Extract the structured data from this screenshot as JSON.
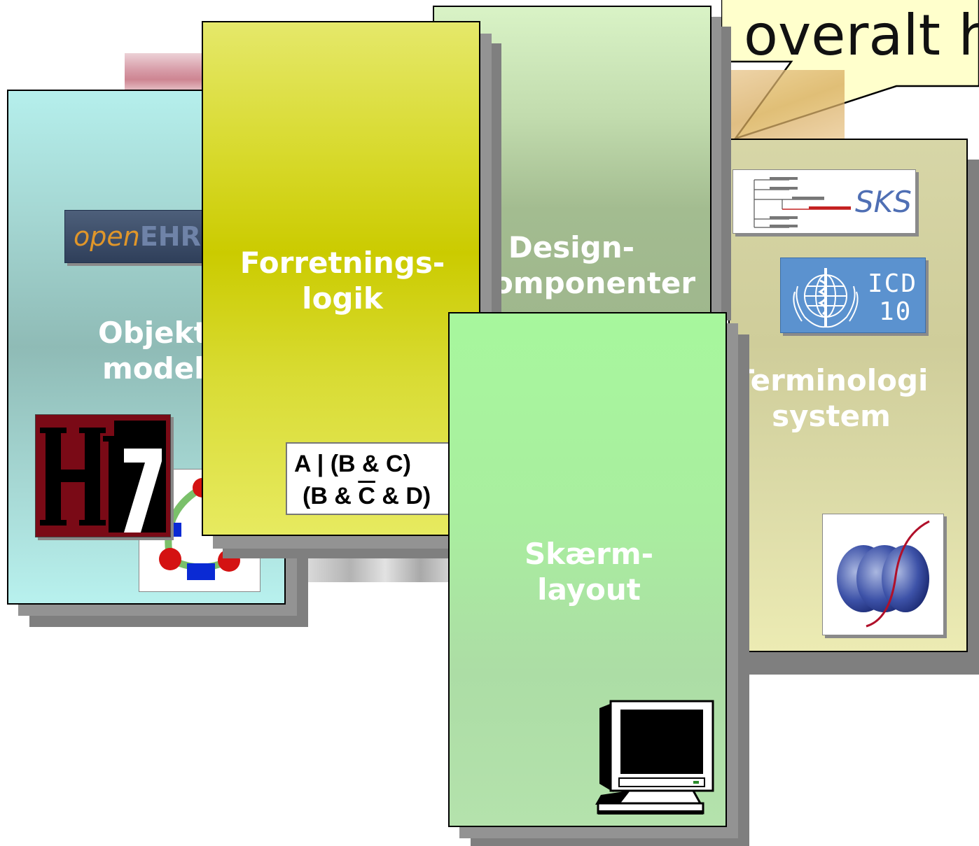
{
  "callout": {
    "text": "overalt h"
  },
  "cards": {
    "objekt_model": {
      "line1": "Objekt",
      "line2": "model"
    },
    "forretningslogik": {
      "line1": "Forretnings-",
      "line2": "logik",
      "formula_line1": "A | (B & C)",
      "formula_line2_pre": "(B & ",
      "formula_line2_bar": "C",
      "formula_line2_post": " & D)"
    },
    "design_komponenter": {
      "line1": "Design-",
      "line2": "omponenter"
    },
    "terminologi_system": {
      "line1": "Terminologi",
      "line2": "system"
    },
    "skaerm_layout": {
      "line1": "Skærm-",
      "line2": "layout"
    }
  },
  "logos": {
    "openehr_prefix": "open",
    "openehr_suffix": "EHR",
    "sks": "SKS",
    "icd_line1": "ICD",
    "icd_line2": "10"
  },
  "colors": {
    "objekt_top": "#b5efec",
    "objekt_mid": "#8fbbb6",
    "forretning_top": "#e5e86a",
    "forretning_mid": "#cbcb00",
    "design_top": "#d9f3c6",
    "design_mid": "#9fb78d",
    "terminologi_top": "#d7d6a7",
    "terminologi_bottom": "#ecebb3",
    "skaerm_top": "#a7f79d",
    "skaerm_bottom": "#b4e2ac",
    "callout_fill": "#ffffcc"
  }
}
